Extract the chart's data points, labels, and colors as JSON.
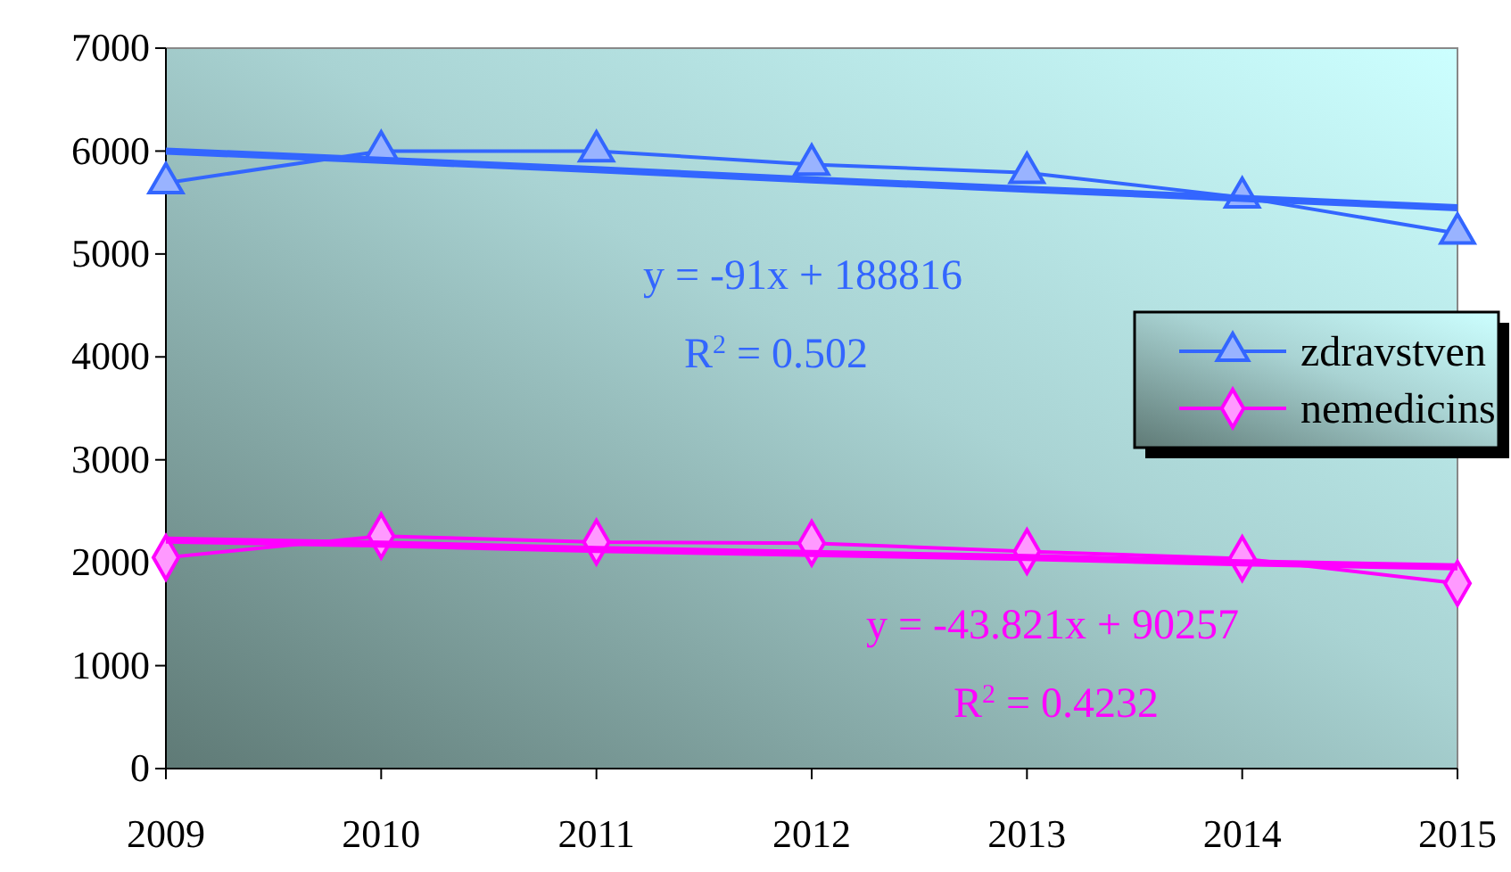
{
  "chart_data": {
    "type": "line",
    "x": [
      2009,
      2010,
      2011,
      2012,
      2013,
      2014,
      2015
    ],
    "xlim": [
      2009,
      2015
    ],
    "xticks": [
      2009,
      2010,
      2011,
      2012,
      2013,
      2014,
      2015
    ],
    "ylim": [
      0,
      7000
    ],
    "yticks": [
      0,
      1000,
      2000,
      3000,
      4000,
      5000,
      6000,
      7000
    ],
    "grid": false,
    "legend": "right",
    "line_style": "solid",
    "series": [
      {
        "name": "zdravstven",
        "color": "#3366ff",
        "marker": "triangle",
        "values": [
          5690,
          6000,
          6000,
          5870,
          5790,
          5550,
          5200
        ]
      },
      {
        "name": "nemedicins",
        "color": "#ff00ff",
        "marker": "diamond",
        "values": [
          2050,
          2260,
          2200,
          2190,
          2110,
          2040,
          1800
        ]
      },
      {
        "type": "line",
        "color": "#3366ff",
        "marker": "none",
        "values": [
          6000,
          5910,
          5820,
          5720,
          5630,
          5540,
          5450
        ]
      },
      {
        "type": "line",
        "color": "#ff00ff",
        "marker": "none",
        "values": [
          2220,
          2180,
          2130,
          2090,
          2050,
          2000,
          1960
        ]
      }
    ],
    "annotations": [
      "y = -91x + 188816",
      "R$^{2}$ = 0.502",
      "y = -43.821x + 90257",
      "R$^{2}$ = 0.4232"
    ]
  }
}
